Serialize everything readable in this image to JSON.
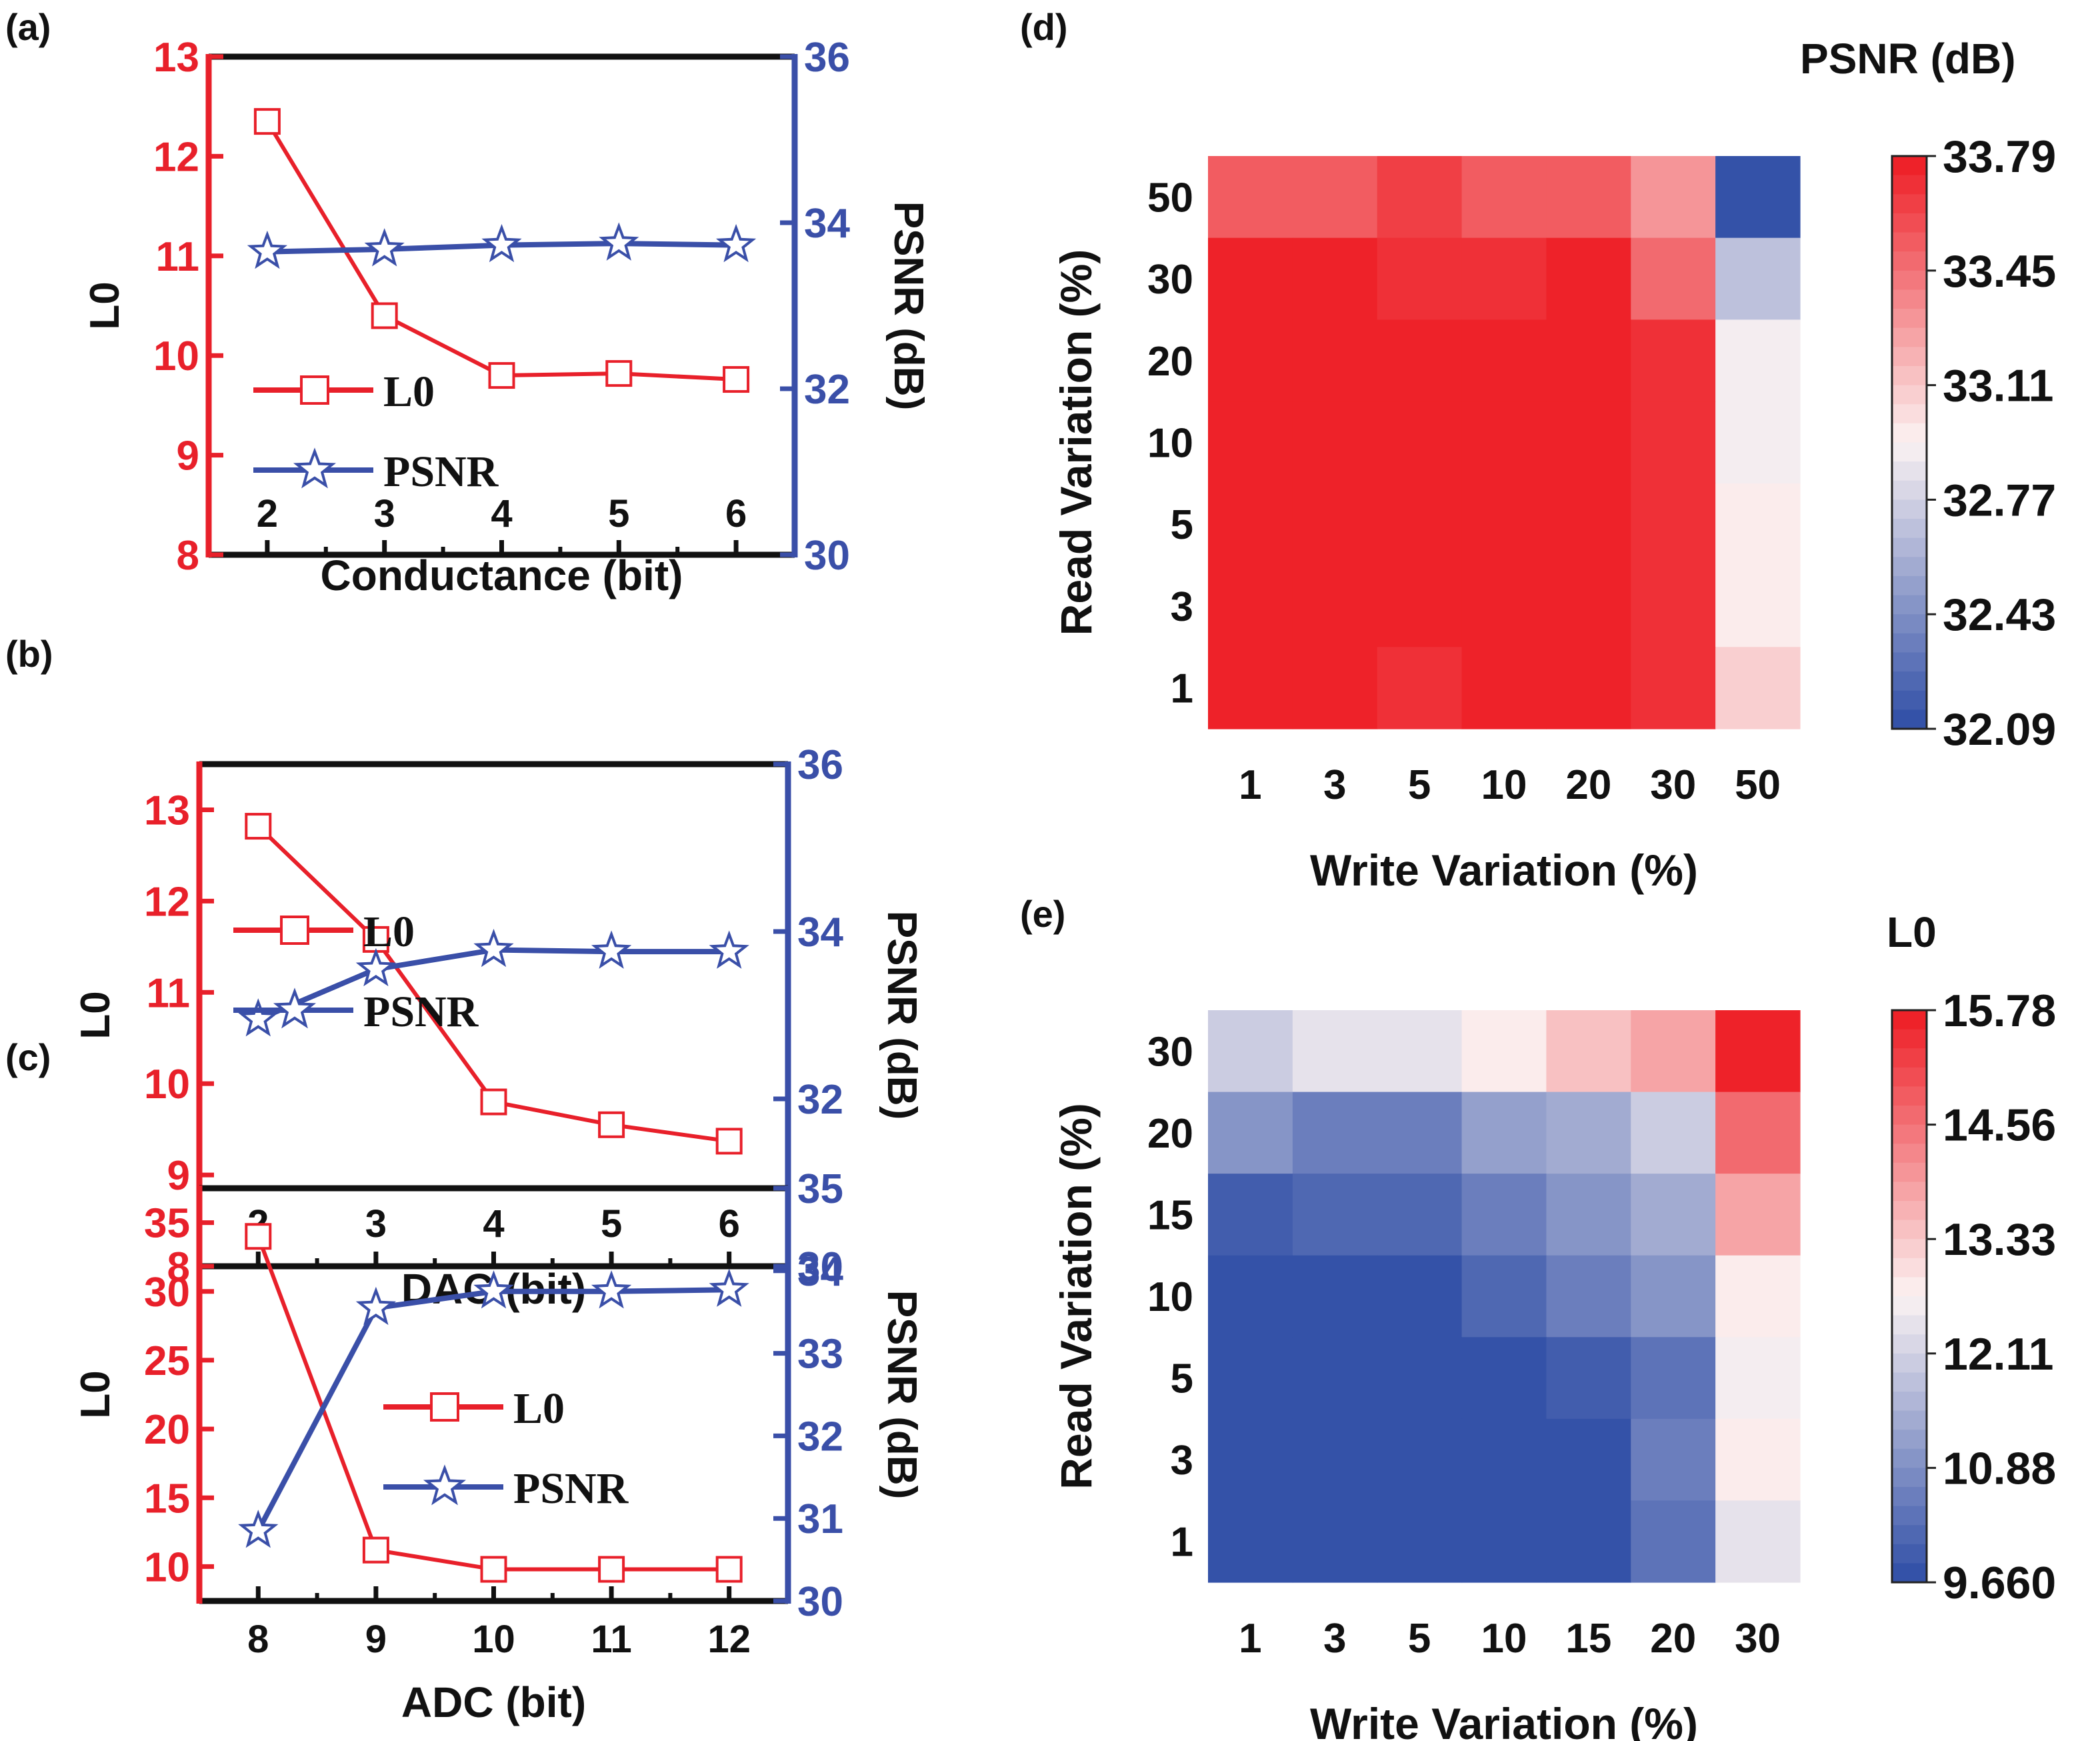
{
  "colors": {
    "l0_red": "#E8202A",
    "psnr_blue": "#3A4FA8",
    "axis_black": "#111111",
    "heat_low": "#3452A8",
    "heat_mid": "#FBF3F3",
    "heat_high": "#EE2229"
  },
  "chart_data": [
    {
      "id": "a",
      "panel_label": "(a)",
      "type": "line",
      "xlabel": "Conductance (bit)",
      "ylabel_left": "L0",
      "ylabel_right": "PSNR (dB)",
      "x": [
        2,
        3,
        4,
        5,
        6
      ],
      "x_tick_labels": [
        "2",
        "3",
        "4",
        "5",
        "6"
      ],
      "xlim": [
        1.5,
        6.5
      ],
      "ylim_left": [
        8,
        13
      ],
      "yticks_left": [
        8,
        9,
        10,
        11,
        12,
        13
      ],
      "ylim_right": [
        30,
        36
      ],
      "yticks_right": [
        30,
        32,
        34,
        36
      ],
      "legend": {
        "placement": "center-left",
        "entries": [
          "L0",
          "PSNR"
        ]
      },
      "series": [
        {
          "name": "L0",
          "axis": "left",
          "marker": "square",
          "values": [
            12.35,
            10.4,
            9.8,
            9.82,
            9.76
          ]
        },
        {
          "name": "PSNR",
          "axis": "right",
          "marker": "star",
          "values": [
            33.65,
            33.68,
            33.73,
            33.75,
            33.73
          ]
        }
      ]
    },
    {
      "id": "b",
      "panel_label": "(b)",
      "type": "line",
      "xlabel": "DAC (bit)",
      "ylabel_left": "L0",
      "ylabel_right": "PSNR (dB)",
      "x": [
        2,
        3,
        4,
        5,
        6
      ],
      "x_tick_labels": [
        "2",
        "3",
        "4",
        "5",
        "6"
      ],
      "xlim": [
        1.5,
        6.5
      ],
      "ylim_left": [
        8,
        13.5
      ],
      "yticks_left": [
        8,
        9,
        10,
        11,
        12,
        13
      ],
      "ylim_right": [
        30,
        36
      ],
      "yticks_right": [
        30,
        32,
        34,
        36
      ],
      "legend": {
        "placement": "bottom-left",
        "entries": [
          "L0",
          "PSNR"
        ]
      },
      "series": [
        {
          "name": "L0",
          "axis": "left",
          "marker": "square",
          "values": [
            12.82,
            11.58,
            9.8,
            9.55,
            9.37
          ]
        },
        {
          "name": "PSNR",
          "axis": "right",
          "marker": "star",
          "values": [
            32.95,
            33.55,
            33.78,
            33.76,
            33.76
          ]
        }
      ]
    },
    {
      "id": "c",
      "panel_label": "(c)",
      "type": "line",
      "xlabel": "ADC (bit)",
      "ylabel_left": "L0",
      "ylabel_right": "PSNR (dB)",
      "x": [
        8,
        9,
        10,
        11,
        12
      ],
      "x_tick_labels": [
        "8",
        "9",
        "10",
        "11",
        "12"
      ],
      "xlim": [
        7.5,
        12.5
      ],
      "ylim_left": [
        7.5,
        37.5
      ],
      "yticks_left": [
        10,
        15,
        20,
        25,
        30,
        35
      ],
      "ylim_right": [
        30,
        35
      ],
      "yticks_right": [
        30,
        31,
        32,
        33,
        34,
        35
      ],
      "legend": {
        "placement": "center-right",
        "entries": [
          "L0",
          "PSNR"
        ]
      },
      "series": [
        {
          "name": "L0",
          "axis": "left",
          "marker": "square",
          "values": [
            34.0,
            11.2,
            9.8,
            9.8,
            9.8
          ]
        },
        {
          "name": "PSNR",
          "axis": "right",
          "marker": "star",
          "values": [
            30.85,
            33.55,
            33.75,
            33.75,
            33.77
          ]
        }
      ]
    },
    {
      "id": "d",
      "panel_label": "(d)",
      "type": "heatmap",
      "colorbar_title": "PSNR (dB)",
      "xlabel": "Write Variation (%)",
      "ylabel": "Read Variation (%)",
      "x_categories": [
        "1",
        "3",
        "5",
        "10",
        "20",
        "30",
        "50"
      ],
      "y_categories_top_to_bottom": [
        "50",
        "30",
        "20",
        "10",
        "5",
        "3",
        "1"
      ],
      "colorbar_ticks": [
        "33.79",
        "33.45",
        "33.11",
        "32.77",
        "32.43",
        "32.09"
      ],
      "vmin": 32.09,
      "vmax": 33.79,
      "values": [
        [
          33.55,
          33.55,
          33.65,
          33.55,
          33.55,
          33.3,
          32.12
        ],
        [
          33.76,
          33.76,
          33.72,
          33.72,
          33.76,
          33.5,
          32.7
        ],
        [
          33.77,
          33.76,
          33.75,
          33.78,
          33.76,
          33.7,
          32.92
        ],
        [
          33.77,
          33.76,
          33.75,
          33.78,
          33.77,
          33.72,
          32.92
        ],
        [
          33.77,
          33.76,
          33.74,
          33.77,
          33.75,
          33.72,
          32.98
        ],
        [
          33.77,
          33.76,
          33.74,
          33.77,
          33.74,
          33.72,
          32.98
        ],
        [
          33.76,
          33.76,
          33.72,
          33.74,
          33.74,
          33.72,
          33.06
        ]
      ]
    },
    {
      "id": "e",
      "panel_label": "(e)",
      "type": "heatmap",
      "colorbar_title": "L0",
      "xlabel": "Write Variation (%)",
      "ylabel": "Read Variation (%)",
      "x_categories": [
        "1",
        "3",
        "5",
        "10",
        "15",
        "20",
        "30"
      ],
      "y_categories_top_to_bottom": [
        "30",
        "20",
        "15",
        "10",
        "5",
        "3",
        "1"
      ],
      "colorbar_ticks": [
        "15.78",
        "14.56",
        "13.33",
        "12.11",
        "10.88",
        "9.660"
      ],
      "vmin": 9.66,
      "vmax": 15.78,
      "values": [
        [
          12.05,
          12.35,
          12.35,
          12.85,
          13.35,
          13.9,
          15.75
        ],
        [
          10.95,
          10.65,
          10.65,
          11.15,
          11.45,
          12.05,
          14.6
        ],
        [
          9.95,
          10.25,
          10.25,
          10.65,
          10.95,
          11.45,
          13.9
        ],
        [
          9.8,
          9.75,
          9.7,
          10.2,
          10.65,
          10.95,
          12.9
        ],
        [
          9.7,
          9.7,
          9.7,
          9.75,
          9.9,
          10.4,
          12.55
        ],
        [
          9.7,
          9.7,
          9.7,
          9.75,
          9.85,
          10.6,
          12.9
        ],
        [
          9.7,
          9.7,
          9.7,
          9.75,
          9.85,
          10.35,
          12.35
        ]
      ]
    }
  ]
}
